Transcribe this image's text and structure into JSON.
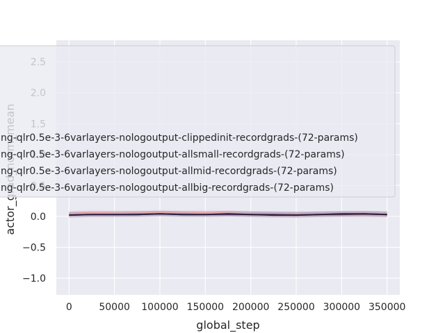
{
  "chart_data": {
    "type": "line",
    "xlabel": "global_step",
    "ylabel": "actor_grad_norm_mean",
    "xlim": [
      -14000,
      364000
    ],
    "ylim": [
      -1.27,
      2.85
    ],
    "xticks": [
      0,
      50000,
      100000,
      150000,
      200000,
      250000,
      300000,
      350000
    ],
    "xtick_labels": [
      "0",
      "50000",
      "100000",
      "150000",
      "200000",
      "250000",
      "300000",
      "350000"
    ],
    "yticks": [
      -1.0,
      -0.5,
      0.0,
      0.5,
      1.0,
      1.5,
      2.0,
      2.5
    ],
    "ytick_labels": [
      "−1.0",
      "−0.5",
      "0.0",
      "0.5",
      "1.0",
      "1.5",
      "2.0",
      "2.5"
    ],
    "grid": true,
    "legend_position": "upper-center",
    "background": "#eaeaf2",
    "series": [
      {
        "name": "ng-qlr0.5e-3-6varlayers-nologoutput-clippedinit-recordgrads-(72-params)",
        "color": "#e8a6a9",
        "x": [
          0,
          25000,
          50000,
          75000,
          100000,
          125000,
          150000,
          175000,
          200000,
          225000,
          250000,
          275000,
          300000,
          325000,
          350000
        ],
        "y": [
          0.04,
          0.06,
          0.05,
          0.05,
          0.06,
          0.05,
          0.06,
          0.05,
          0.04,
          0.03,
          0.03,
          0.02,
          0.03,
          0.02,
          0.02
        ]
      },
      {
        "name": "ng-qlr0.5e-3-6varlayers-nologoutput-allsmall-recordgrads-(72-params)",
        "color": "#b583a0",
        "x": [
          0,
          25000,
          50000,
          75000,
          100000,
          125000,
          150000,
          175000,
          200000,
          225000,
          250000,
          275000,
          300000,
          325000,
          350000
        ],
        "y": [
          0.03,
          0.03,
          0.03,
          0.04,
          0.04,
          0.04,
          0.03,
          0.04,
          0.03,
          0.03,
          0.03,
          0.03,
          0.03,
          0.03,
          0.03
        ]
      },
      {
        "name": "ng-qlr0.5e-3-6varlayers-nologoutput-allmid-recordgrads-(72-params)",
        "color": "#6e4a79",
        "x": [
          0,
          25000,
          50000,
          75000,
          100000,
          125000,
          150000,
          175000,
          200000,
          225000,
          250000,
          275000,
          300000,
          325000,
          350000
        ],
        "y": [
          0.02,
          0.03,
          0.03,
          0.03,
          0.04,
          0.03,
          0.03,
          0.03,
          0.03,
          0.03,
          0.02,
          0.03,
          0.03,
          0.04,
          0.03
        ]
      },
      {
        "name": "ng-qlr0.5e-3-6varlayers-nologoutput-allbig-recordgrads-(72-params)",
        "color": "#2d1e3e",
        "x": [
          0,
          25000,
          50000,
          75000,
          100000,
          125000,
          150000,
          175000,
          200000,
          225000,
          250000,
          275000,
          300000,
          325000,
          350000
        ],
        "y": [
          0.02,
          0.03,
          0.03,
          0.03,
          0.04,
          0.03,
          0.03,
          0.04,
          0.03,
          0.02,
          0.02,
          0.03,
          0.04,
          0.04,
          0.03
        ]
      }
    ]
  }
}
